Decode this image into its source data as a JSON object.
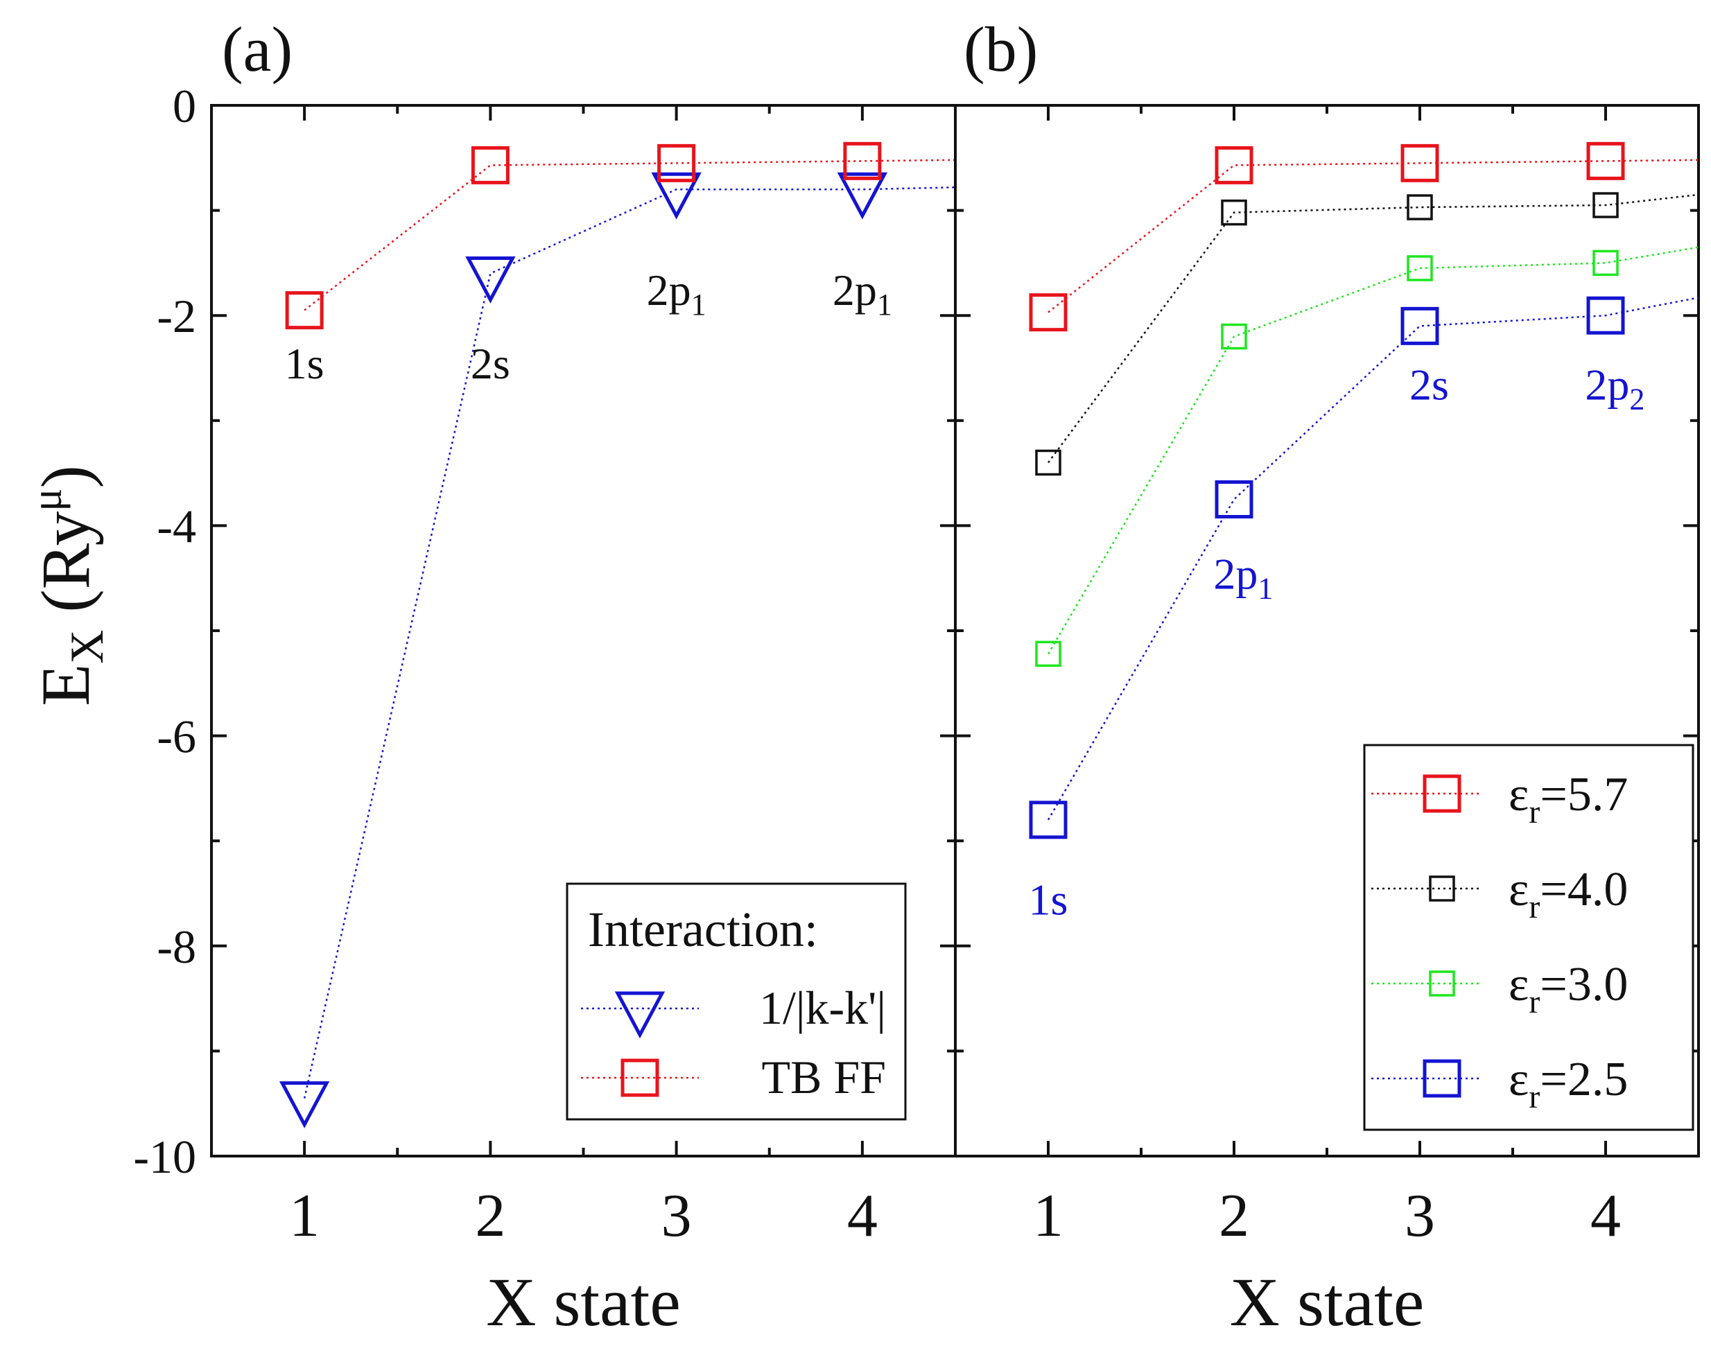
{
  "figure": {
    "ylabel_main": "E",
    "ylabel_sub": "X",
    "ylabel_unit_open": " (Ry",
    "ylabel_unit_sup": "μ",
    "ylabel_unit_close": ")"
  },
  "colors": {
    "red": "#e8141c",
    "blue": "#1414d2",
    "black": "#111111",
    "green": "#1ee61e"
  },
  "chart_data": [
    {
      "type": "line",
      "panel_label": "(a)",
      "xlabel": "X state",
      "xlim": [
        0.5,
        4.5
      ],
      "ylim": [
        -10,
        0
      ],
      "xticks": [
        1,
        2,
        3,
        4
      ],
      "yticks": [
        0,
        -2,
        -4,
        -6,
        -8,
        -10
      ],
      "yticklabels": [
        "0",
        "-2",
        "-4",
        "-6",
        "-8",
        "-10"
      ],
      "x": [
        1,
        2,
        3,
        4,
        4.5
      ],
      "series": [
        {
          "name": "1/|k-k'|",
          "marker": "triangle-down",
          "color": "#1414d2",
          "values": [
            -9.45,
            -1.6,
            -0.8,
            -0.8,
            -0.78
          ]
        },
        {
          "name": "TB FF",
          "marker": "square-large",
          "color": "#e8141c",
          "values": [
            -1.95,
            -0.57,
            -0.55,
            -0.53,
            -0.52
          ]
        }
      ],
      "legend": {
        "title": "Interaction:",
        "entries": [
          "1/|k-k'|",
          "TB FF"
        ],
        "position": "bottom-right"
      },
      "annotations": [
        {
          "main": "1s",
          "sub": "",
          "x": 1,
          "y": -2.6,
          "color": "#111111"
        },
        {
          "main": "2s",
          "sub": "",
          "x": 2,
          "y": -2.6,
          "color": "#111111"
        },
        {
          "main": "2p",
          "sub": "1",
          "x": 3,
          "y": -1.9,
          "color": "#111111"
        },
        {
          "main": "2p",
          "sub": "1",
          "x": 4,
          "y": -1.9,
          "color": "#111111"
        }
      ]
    },
    {
      "type": "line",
      "panel_label": "(b)",
      "xlabel": "X state",
      "xlim": [
        0.5,
        4.5
      ],
      "ylim": [
        -10,
        0
      ],
      "xticks": [
        1,
        2,
        3,
        4
      ],
      "yticks": [
        0,
        -2,
        -4,
        -6,
        -8,
        -10
      ],
      "x": [
        1,
        2,
        3,
        4,
        4.5
      ],
      "series": [
        {
          "name": "ε",
          "sub": "r",
          "value": "=5.7",
          "marker": "square-large",
          "color": "#e8141c",
          "values": [
            -1.97,
            -0.57,
            -0.55,
            -0.53,
            -0.52
          ]
        },
        {
          "name": "ε",
          "sub": "r",
          "value": "=4.0",
          "marker": "square-small",
          "color": "#111111",
          "values": [
            -3.4,
            -1.02,
            -0.97,
            -0.95,
            -0.85
          ]
        },
        {
          "name": "ε",
          "sub": "r",
          "value": "=3.0",
          "marker": "square-small",
          "color": "#1ee61e",
          "values": [
            -5.22,
            -2.2,
            -1.55,
            -1.5,
            -1.35
          ]
        },
        {
          "name": "ε",
          "sub": "r",
          "value": "=2.5",
          "marker": "square-large",
          "color": "#1414d2",
          "values": [
            -6.8,
            -3.75,
            -2.1,
            -2.0,
            -1.83
          ]
        }
      ],
      "legend": {
        "entries": [
          "εr=5.7",
          "εr=4.0",
          "εr=3.0",
          "εr=2.5"
        ],
        "position": "bottom-right"
      },
      "annotations": [
        {
          "main": "1s",
          "sub": "",
          "x": 1,
          "y": -7.7,
          "color": "#1414d2"
        },
        {
          "main": "2p",
          "sub": "1",
          "x": 2.05,
          "y": -4.6,
          "color": "#1414d2"
        },
        {
          "main": "2s",
          "sub": "",
          "x": 3.05,
          "y": -2.8,
          "color": "#1414d2"
        },
        {
          "main": "2p",
          "sub": "2",
          "x": 4.05,
          "y": -2.8,
          "color": "#1414d2"
        }
      ]
    }
  ]
}
